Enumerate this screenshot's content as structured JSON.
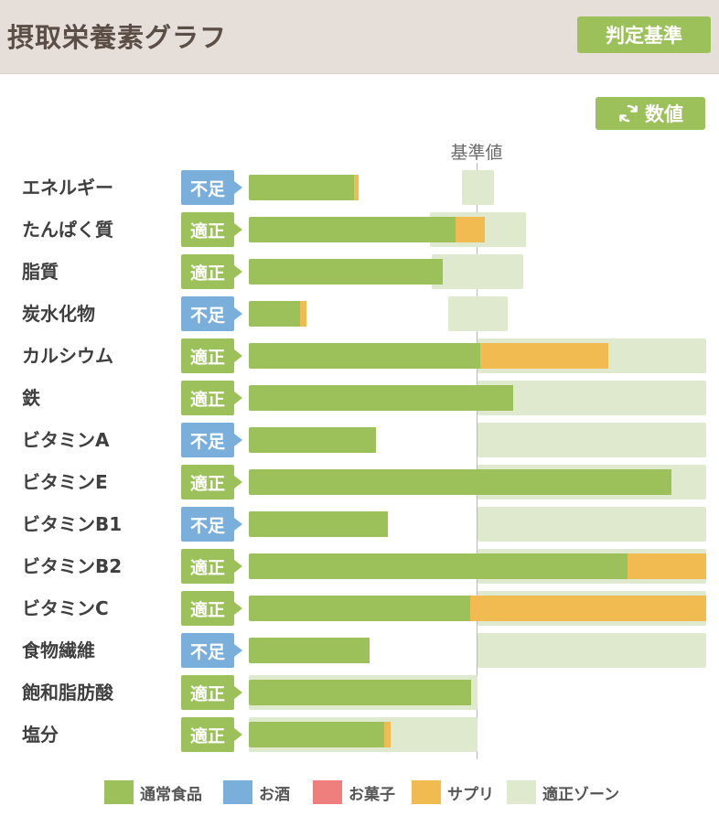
{
  "header": {
    "title": "摂取栄養素グラフ",
    "criteria_button": "判定基準"
  },
  "toolbar": {
    "values_button": "数値",
    "refresh_icon": "refresh-icon"
  },
  "baseline_label": "基準値",
  "colors": {
    "normal_food": "#9cc15b",
    "alcohol": "#7aafdc",
    "sweets": "#ef7f7c",
    "supplement": "#f1bb52",
    "proper_zone": "#dfe9ce",
    "status_low": "#7aafdc",
    "status_ok": "#9cc15b"
  },
  "status_labels": {
    "low": "不足",
    "ok": "適正"
  },
  "nutrients": [
    {
      "label": "エネルギー",
      "status": "不足",
      "status_key": "low",
      "normal_pct": 46,
      "supplement_pct": 1.9,
      "zone_start_pct": 93,
      "zone_end_pct": 107
    },
    {
      "label": "たんぱく質",
      "status": "適正",
      "status_key": "ok",
      "normal_pct": 90.4,
      "supplement_pct": 12.8,
      "zone_start_pct": 79,
      "zone_end_pct": 121
    },
    {
      "label": "脂質",
      "status": "適正",
      "status_key": "ok",
      "normal_pct": 84.8,
      "supplement_pct": 0,
      "zone_start_pct": 80,
      "zone_end_pct": 120
    },
    {
      "label": "炭水化物",
      "status": "不足",
      "status_key": "low",
      "normal_pct": 22.4,
      "supplement_pct": 2.8,
      "zone_start_pct": 87,
      "zone_end_pct": 113
    },
    {
      "label": "カルシウム",
      "status": "適正",
      "status_key": "ok",
      "normal_pct": 101.2,
      "supplement_pct": 56,
      "zone_start_pct": 100,
      "zone_end_pct": 200
    },
    {
      "label": "鉄",
      "status": "適正",
      "status_key": "ok",
      "normal_pct": 115.6,
      "supplement_pct": 0,
      "zone_start_pct": 100,
      "zone_end_pct": 200
    },
    {
      "label": "ビタミンA",
      "status": "不足",
      "status_key": "low",
      "normal_pct": 55.6,
      "supplement_pct": 0,
      "zone_start_pct": 100,
      "zone_end_pct": 200
    },
    {
      "label": "ビタミンE",
      "status": "適正",
      "status_key": "ok",
      "normal_pct": 184.8,
      "supplement_pct": 0,
      "zone_start_pct": 100,
      "zone_end_pct": 200
    },
    {
      "label": "ビタミンB1",
      "status": "不足",
      "status_key": "low",
      "normal_pct": 60.8,
      "supplement_pct": 0,
      "zone_start_pct": 100,
      "zone_end_pct": 200
    },
    {
      "label": "ビタミンB2",
      "status": "適正",
      "status_key": "ok",
      "normal_pct": 165.6,
      "supplement_pct": 34.4,
      "zone_start_pct": 100,
      "zone_end_pct": 200
    },
    {
      "label": "ビタミンC",
      "status": "適正",
      "status_key": "ok",
      "normal_pct": 96.8,
      "supplement_pct": 103.2,
      "zone_start_pct": 100,
      "zone_end_pct": 200
    },
    {
      "label": "食物繊維",
      "status": "不足",
      "status_key": "low",
      "normal_pct": 52.8,
      "supplement_pct": 0,
      "zone_start_pct": 100,
      "zone_end_pct": 200
    },
    {
      "label": "飽和脂肪酸",
      "status": "適正",
      "status_key": "ok",
      "normal_pct": 97.2,
      "supplement_pct": 0,
      "zone_start_pct": 0,
      "zone_end_pct": 100
    },
    {
      "label": "塩分",
      "status": "適正",
      "status_key": "ok",
      "normal_pct": 59.2,
      "supplement_pct": 2.8,
      "zone_start_pct": 0,
      "zone_end_pct": 100
    }
  ],
  "legend": [
    {
      "label": "通常食品",
      "color": "#9cc15b"
    },
    {
      "label": "お酒",
      "color": "#7aafdc"
    },
    {
      "label": "お菓子",
      "color": "#ef7f7c"
    },
    {
      "label": "サプリ",
      "color": "#f1bb52"
    },
    {
      "label": "適正ゾーン",
      "color": "#dfe9ce"
    }
  ]
}
